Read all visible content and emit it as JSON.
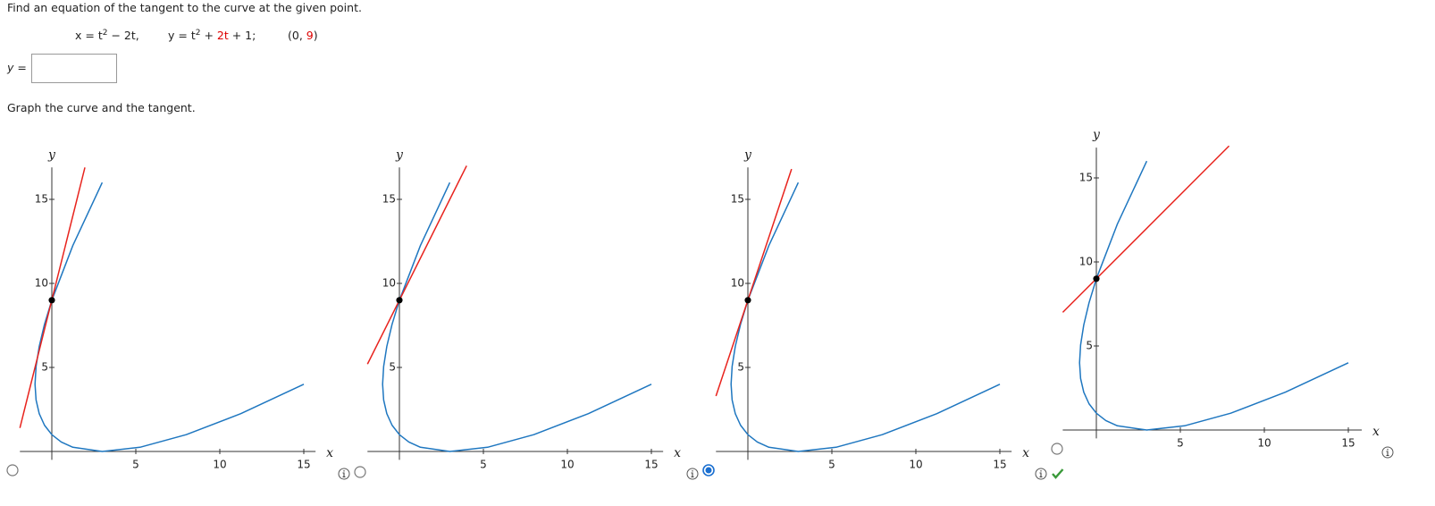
{
  "question": "Find an equation of the tangent to the curve at the given point.",
  "equations": {
    "x_prefix": "x = t",
    "x_exp": "2",
    "x_suffix": " − 2t,",
    "y_prefix": "y = t",
    "y_exp": "2",
    "y_mid": " + ",
    "y_red": "2t",
    "y_suffix": " + 1;",
    "point_open": "(0, ",
    "point_y": "9",
    "point_close": ")"
  },
  "answer_label": "y =",
  "instruction": "Graph the curve and the tangent.",
  "graphs": [
    {
      "x_label": "x",
      "y_label": "y",
      "xticks": [
        5,
        10,
        15
      ],
      "yticks": [
        5,
        10,
        15
      ],
      "selected": false,
      "marked_correct": false
    },
    {
      "x_label": "x",
      "y_label": "y",
      "xticks": [
        5,
        10,
        15
      ],
      "yticks": [
        5,
        10,
        15
      ],
      "selected": false,
      "marked_correct": false
    },
    {
      "x_label": "x",
      "y_label": "y",
      "xticks": [
        5,
        10,
        15
      ],
      "yticks": [
        5,
        10,
        15
      ],
      "selected": true,
      "marked_correct": true
    },
    {
      "x_label": "x",
      "y_label": "y",
      "xticks": [
        5,
        10,
        15
      ],
      "yticks": [
        5,
        10,
        15
      ],
      "selected": false,
      "marked_correct": false
    }
  ]
}
